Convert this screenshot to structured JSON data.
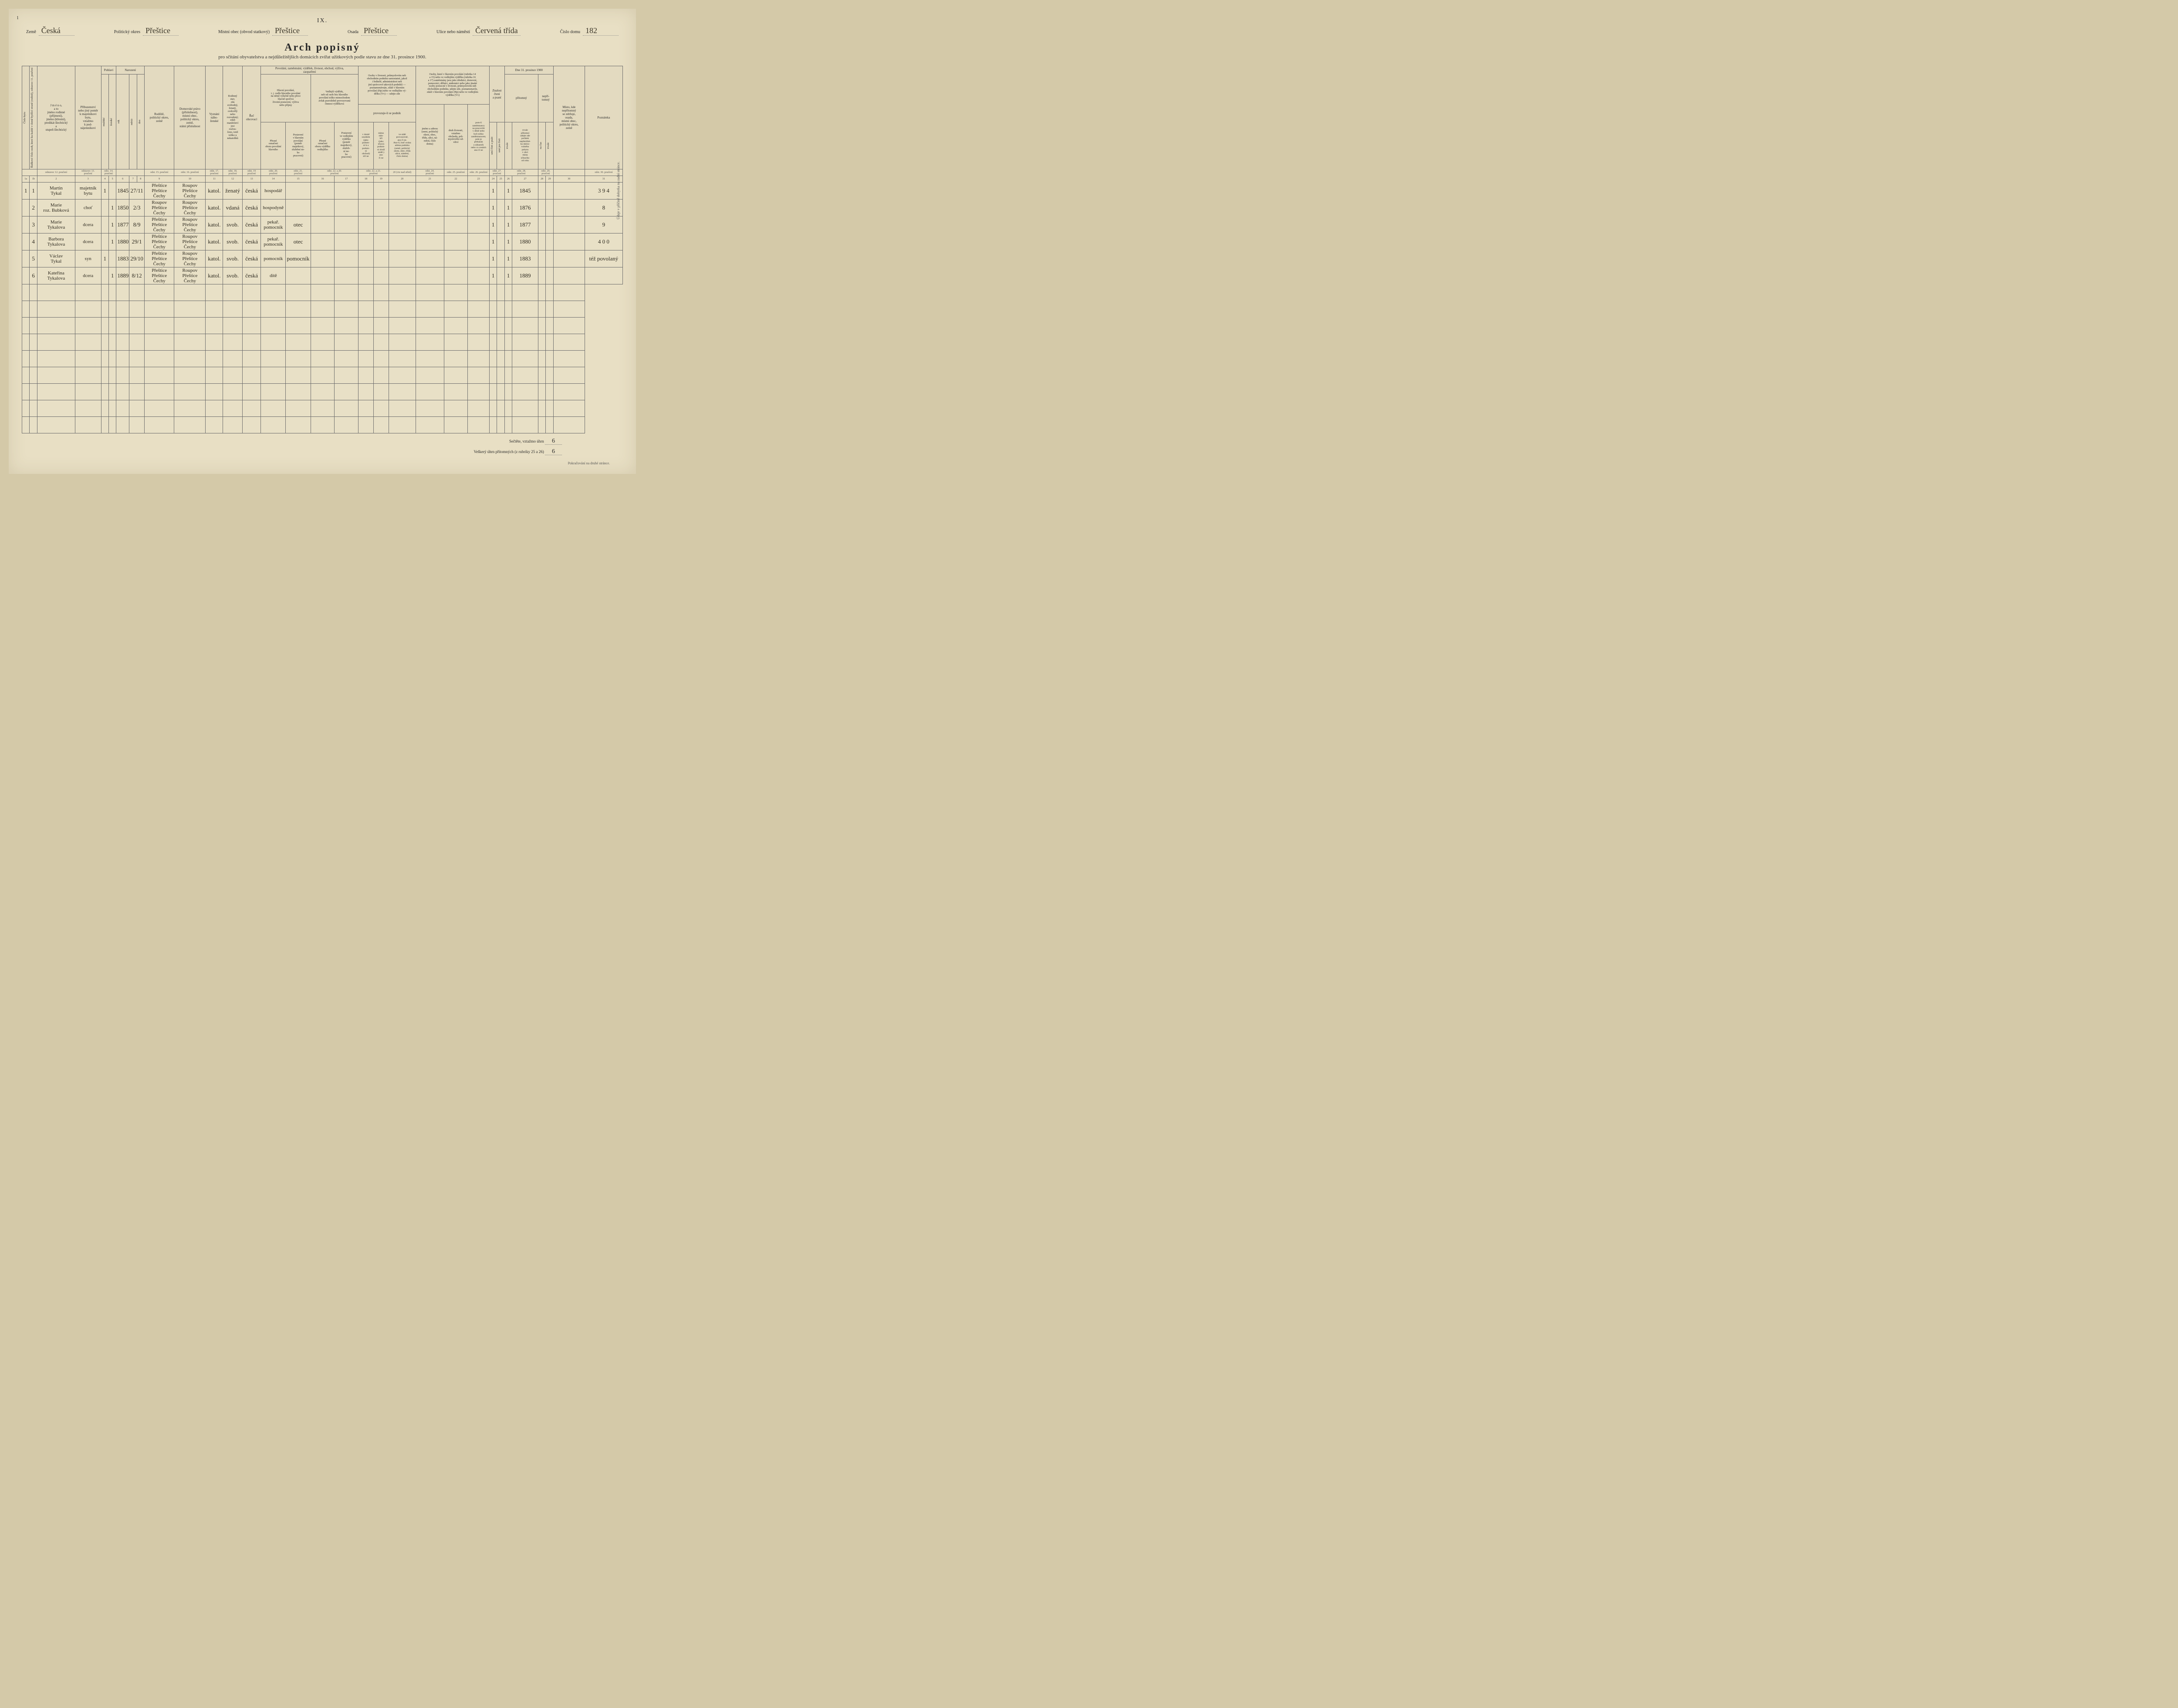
{
  "roman_numeral": "IX.",
  "top_left_num": "1",
  "header": {
    "zeme_label": "Země",
    "zeme": "Česká",
    "okres_label": "Politický okres",
    "okres": "Přeštice",
    "obec_label": "Místní obec (obvod statkový)",
    "obec": "Přeštice",
    "osada_label": "Osada",
    "osada": "Přeštice",
    "ulice_label": "Ulice nebo náměstí",
    "ulice": "Červená třída",
    "cislo_label": "Číslo domu",
    "cislo": "182"
  },
  "title": "Arch popisný",
  "subtitle": "pro sčítání obyvatelstva a nejdůležitějších domácích zvířat užitkových podle stavu ze dne 31. prosince 1900.",
  "headers": {
    "cislo_bytu": "Číslo bytu",
    "radkove": "Řádkové číslo osob, které ku každé v domě bydlící straně (rodině), odstavec 11. poučení",
    "jmeno": "J m é n o,\na to\njméno rodinné\n(příjmení),\njméno (křestní),\npredikát šlechtický\na\nstupeň šlechtický",
    "pribuz": "Příbuzenství\nnebo jiný poměr\nk majetníkovi\nbytu,\nvztažmo\nk pod-\nnájemníkovi",
    "pohlavi": "Pohlaví",
    "muzske": "mužské",
    "zenske": "ženské",
    "narozeni": "Narození",
    "rok": "rok",
    "mesic": "měsíc",
    "den": "den",
    "rodiste": "Rodiště,\npolitický okres,\nzemě",
    "domov": "Domovské právo\n(příslušnost),\nmístní obec,\npolitický okres,\nzemě,\nstátní příslušnost",
    "vyznani": "Vyznání\nnábo-\nženské",
    "rodinny": "Rodinný\nstav,\nzda\nsvobodný,\nženatý,\novdovělý\nnebo\nrozvedený;\nzdali\nmanželství\njest\nrozlou-\nčeno, totiž\ntoliko u\nnekatolíků",
    "rec": "Řeč\nobcovací",
    "povolani_gr": "Povolání, zaměstnání, výdělek, živnost, obchod, výživa,\nzaopatření",
    "hlavni_pov": "Hlavní povolání,\nt. j. vedle hlavního povolání\nna němž výlučně nebo přece\nhlavně spočívá\nživotní postavení, výživa\nnebo příjmy",
    "vedlejsi": "Vedlejší výdělek,\nneb od osob bez hlavního\npovolání toliko mimochodem\navšak pravidelně provozovaná\nčinnost výdělková",
    "presne_hl": "Přesné\noznačení\noboru povolání\nhlavního",
    "postav_hl": "Postavení\nv hlavním\npovolání\n(poměr\nmajetkový,\nslužební ne-\nbo\npracovní)",
    "presne_vd": "Přesné\noznačení\noboru výdělku\nvedlejšího",
    "postav_vd": "Postavení\nve vedlejším\nvýdělku\n(poměr\nmajetkový,\nslužeb-\nní ne-\nbo\npracovní)",
    "osoby_zivn": "Osoby v živnosti, průmyslovém neb\nobchodním podniku samostatné, jakož\ni ředitelé, administrátori neb\njiní správcové takových podniků —\npoznamenávejte, zdali v hlavním\npovolání (Hp) nebo ve vedlejším vý-\ndělku (Vv) — udejte zde",
    "provoz": "provozuje-li se podnik",
    "v_dome": "v domě\nsoudním\n(jako\npodom-\nní k a\npodom-\nní\nobchod)\núči ne",
    "mimo": "mimo\nstán-\nkři\n(jako\ntrhová\npodom-\nní zboží\numěl.)\nano\nči ne",
    "v_stale": "ve stálé\nprovozovně,\nano či ne.\nAno-li, buď uvána\nadresa podniku\n(země, politický\nokres, obec, třída\nulice, náměstí,\nčíslo domu)",
    "osoby_hl": "Osoby, které v hlavním povolání (rubrika 14\na 15) nebo ve vedlejším výdělku (rubrika 16\na 17) zaměstnány jsou jako úředníci, domovní,\npomocníci, dělníci, nádenníci nebo jako jinaké\nosoby pomocné v živnosti, průmyslovém neb\nobchodním podniku, udejte zde, poznamenavše,\nzdali v hlavním povolání (Hp) nebo ve vedlejším\nvýdělku (Vv)",
    "jmeno_adr": "jméno a adresu\n(zemi, politický\nokres, obec,\ntřídu, ulici, ná-\nměstí, číslo\ndomu)",
    "druh_ziv": "druh živnosti,\nvztažmo\nobchodu, prů-\nmyslového od-\nvětví",
    "pom_zam": "pom-lí\nzaměstnancy\nna pracovišti\nv dílně nebo\nbyli toliko\nzaměstnancem;\npole je\npřekázán\na zákazník\nnebo co cestách\nano či ne",
    "nyn_zam": "nynějšího zaměstnavatele\n(firmy)",
    "znalost": "Znalost\nčtení\na psaní",
    "umi_cist": "umí čísti a psáti",
    "umi_jen": "umí jen čísti",
    "dne_pr": "Dne 31. prosince 1900",
    "pritomny": "přítomný",
    "nepritomny": "nepří-\ntomný",
    "trvale": "trvale",
    "na_cas": "na čas",
    "trvale_prit": "trvale\npřítomní\nudejte zde\npočátek\nnepřetržité-\nho dobro-\nvolného\npobytu\nv obci\nmísta\nsčítacího\nod roku",
    "misto_kde": "Místo, kde\nnepřítomný\nse zdržuje,\nosada,\nmístní obec,\npolitický okres,\nzemě",
    "poznamka": "Poznámka",
    "side_note": "Údaje v příčině dobytka na zadní stránce."
  },
  "instr": {
    "c2": "odstavec 12. poučení",
    "c3": "odstavec 13.\npoučení",
    "c45": "odst. 14.\npoučení",
    "c678": "",
    "c9": "odst. 15. poučení",
    "c10": "odst. 16. poučení",
    "c11": "odst. 17. poučení",
    "c12": "odst. 18.\npoučení",
    "c13": "odst. 19\npoučení",
    "c14": "odst. 20.\npoučení",
    "c15": "odst. 21.\npoučení",
    "c1617": "odst. 22. a 20.\npoučení",
    "c1819": "odst. 22. a 21.\npoučení",
    "c20": "20 (viz nad střed)",
    "c21": "odst. 24.\npoučení",
    "c22": "odst. 25. poučení",
    "c23": "odst. 26. poučení",
    "c2425": "odst. 27.\npoučení",
    "c2627": "odst. 28.\npoučení",
    "c28": "odst. 29. poučení",
    "c31": "odst. 30. poučení"
  },
  "rows": [
    {
      "byt": "1",
      "rad": "1",
      "jmeno": "Martin\nTykal",
      "pribuz": "majetník\nbytu",
      "muz": "1",
      "zen": "",
      "rok": "1845",
      "md": "27/11",
      "rodiste": "Přeštice\nPřeštice\nČechy",
      "domov": "Roupov\nPřeštice\nČechy",
      "vyzn": "katol.",
      "stav": "ženatý",
      "rec": "česká",
      "pov1": "hospodář",
      "pov2": "",
      "cist": "1",
      "trv": "1",
      "od": "1845",
      "pozn": "3 9 4"
    },
    {
      "byt": "",
      "rad": "2",
      "jmeno": "Marie\nroz. Bubková",
      "pribuz": "choť",
      "muz": "",
      "zen": "1",
      "rok": "1850",
      "md": "2/3",
      "rodiste": "Roupov\nPřeštice\nČechy",
      "domov": "Roupov\nPřeštice\nČechy",
      "vyzn": "katol.",
      "stav": "vdaná",
      "rec": "česká",
      "pov1": "hospodyně",
      "pov2": "",
      "cist": "1",
      "trv": "1",
      "od": "1876",
      "pozn": "8"
    },
    {
      "byt": "",
      "rad": "3",
      "jmeno": "Marie\nTykalova",
      "pribuz": "dcera",
      "muz": "",
      "zen": "1",
      "rok": "1877",
      "md": "8/9",
      "rodiste": "Přeštice\nPřeštice\nČechy",
      "domov": "Roupov\nPřeštice\nČechy",
      "vyzn": "katol.",
      "stav": "svob.",
      "rec": "česká",
      "pov1": "pekař.\npomocník",
      "pov2": "otec",
      "cist": "1",
      "trv": "1",
      "od": "1877",
      "pozn": "9"
    },
    {
      "byt": "",
      "rad": "4",
      "jmeno": "Barbora\nTykalova",
      "pribuz": "dcera",
      "muz": "",
      "zen": "1",
      "rok": "1880",
      "md": "29/1",
      "rodiste": "Přeštice\nPřeštice\nČechy",
      "domov": "Roupov\nPřeštice\nČechy",
      "vyzn": "katol.",
      "stav": "svob.",
      "rec": "česká",
      "pov1": "pekař.\npomocník",
      "pov2": "otec",
      "cist": "1",
      "trv": "1",
      "od": "1880",
      "pozn": "4 0 0"
    },
    {
      "byt": "",
      "rad": "5",
      "jmeno": "Václav\nTykal",
      "pribuz": "syn",
      "muz": "1",
      "zen": "",
      "rok": "1883",
      "md": "29/10",
      "rodiste": "Přeštice\nPřeštice\nČechy",
      "domov": "Roupov\nPřeštice\nČechy",
      "vyzn": "katol.",
      "stav": "svob.",
      "rec": "česká",
      "pov1": "pomocník",
      "pov2": "pomocník",
      "cist": "1",
      "trv": "1",
      "od": "1883",
      "pozn": "též povolaný"
    },
    {
      "byt": "",
      "rad": "6",
      "jmeno": "Kateřina\nTykalova",
      "pribuz": "dcera",
      "muz": "",
      "zen": "1",
      "rok": "1889",
      "md": "8/12",
      "rodiste": "Přeštice\nPřeštice\nČechy",
      "domov": "Roupov\nPřeštice\nČechy",
      "vyzn": "katol.",
      "stav": "svob.",
      "rec": "česká",
      "pov1": "dítě",
      "pov2": "",
      "cist": "1",
      "trv": "1",
      "od": "1889",
      "pozn": ""
    }
  ],
  "blank_rows": 9,
  "footer": {
    "line1_label": "Sečtěte, vztažmo úhrn",
    "line1_val": "6",
    "line2_label": "Veškerý úhrn přítomných (z rubriky 25 a 26)",
    "line2_val": "6",
    "cont": "Pokračování na druhé stránce."
  },
  "colors": {
    "page_bg": "#e8dfc4",
    "body_bg": "#d4c9a8",
    "border": "#6b6b6b",
    "ink": "#2e2a20",
    "blue": "rgba(40,80,180,0.55)"
  }
}
